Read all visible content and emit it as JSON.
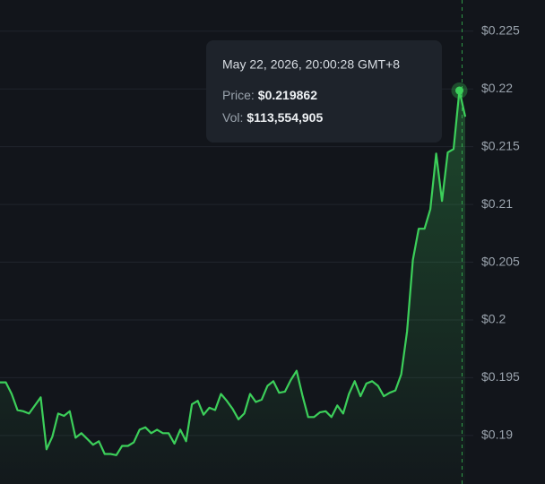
{
  "chart_data": {
    "type": "line",
    "color": "#3ccf5a",
    "grid": true,
    "ylim": [
      0.1858,
      0.2277
    ],
    "yticks": [
      {
        "value": 0.19,
        "label": "$0.19"
      },
      {
        "value": 0.195,
        "label": "$0.195"
      },
      {
        "value": 0.2,
        "label": "$0.2"
      },
      {
        "value": 0.205,
        "label": "$0.205"
      },
      {
        "value": 0.21,
        "label": "$0.21"
      },
      {
        "value": 0.215,
        "label": "$0.215"
      },
      {
        "value": 0.22,
        "label": "$0.22"
      },
      {
        "value": 0.225,
        "label": "$0.225"
      }
    ],
    "values": [
      0.1946,
      0.1946,
      0.1936,
      0.1922,
      0.1921,
      0.1919,
      0.1926,
      0.1933,
      0.1888,
      0.1899,
      0.1919,
      0.1917,
      0.1921,
      0.1898,
      0.1902,
      0.1897,
      0.1892,
      0.1895,
      0.1884,
      0.1884,
      0.1883,
      0.1891,
      0.1891,
      0.1894,
      0.1905,
      0.1907,
      0.1902,
      0.1905,
      0.1902,
      0.1902,
      0.1893,
      0.1905,
      0.1895,
      0.1927,
      0.193,
      0.1918,
      0.1924,
      0.1922,
      0.1936,
      0.193,
      0.1923,
      0.1914,
      0.1919,
      0.1936,
      0.1929,
      0.1931,
      0.1943,
      0.1947,
      0.1937,
      0.1938,
      0.1948,
      0.1956,
      0.1935,
      0.1916,
      0.1916,
      0.192,
      0.1921,
      0.1916,
      0.1926,
      0.1919,
      0.1936,
      0.1947,
      0.1934,
      0.1945,
      0.1947,
      0.1943,
      0.1934,
      0.1937,
      0.1939,
      0.1953,
      0.199,
      0.2052,
      0.2079,
      0.2079,
      0.2096,
      0.2144,
      0.2103,
      0.2145,
      0.2148,
      0.219862,
      0.2176
    ],
    "tooltip": {
      "time": "May 22, 2026, 20:00:28 GMT+8",
      "price_label": "Price:",
      "price": "$0.219862",
      "vol_label": "Vol:",
      "vol": "$113,554,905"
    }
  }
}
